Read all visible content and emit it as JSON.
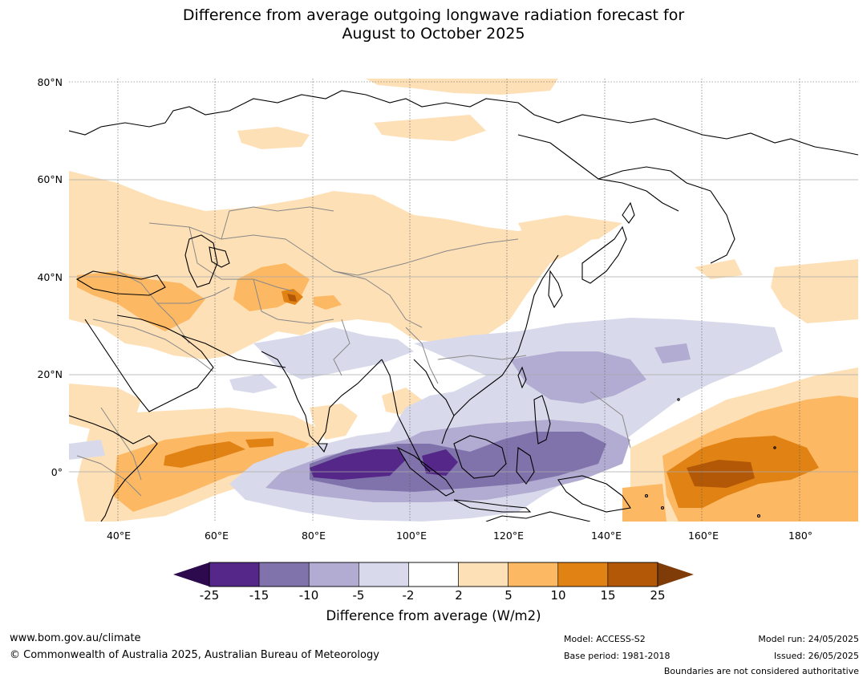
{
  "title": {
    "line1": "Difference from average outgoing longwave radiation forecast for",
    "line2": "August to October 2025"
  },
  "map": {
    "lat_labels": [
      "80°N",
      "60°N",
      "40°N",
      "20°N",
      "0°"
    ],
    "lon_labels": [
      "40°E",
      "60°E",
      "80°E",
      "100°E",
      "120°E",
      "140°E",
      "160°E",
      "180°"
    ],
    "extent": {
      "lon_min": 30,
      "lon_max": 192,
      "lat_min": -10,
      "lat_max": 80
    }
  },
  "colorbar": {
    "ticks": [
      "-25",
      "-15",
      "-10",
      "-5",
      "-2",
      "2",
      "5",
      "10",
      "15",
      "25"
    ],
    "under_color": "#2d0a4e",
    "over_color": "#7f3b08",
    "colors": [
      "#542788",
      "#8073ac",
      "#b2abd2",
      "#d8daeb",
      "#ffffff",
      "#fee0b6",
      "#fdb863",
      "#e08214",
      "#b35806"
    ],
    "label": "Difference from average (W/m2)"
  },
  "footer": {
    "url": "www.bom.gov.au/climate",
    "copyright": "© Commonwealth of Australia 2025, Australian Bureau of Meteorology",
    "model": "Model: ACCESS-S2",
    "base_period": "Base period: 1981-2018",
    "model_run": "Model run: 24/05/2025",
    "issued": "Issued: 26/05/2025",
    "disclaimer": "Boundaries are not considered authoritative"
  }
}
